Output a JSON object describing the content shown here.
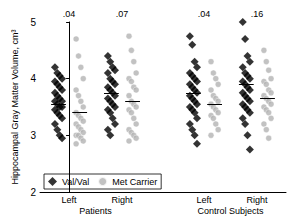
{
  "chart_data": {
    "type": "scatter",
    "ylabel": "Hippocampal Gray Matter Volume, cm³",
    "ylim": [
      2,
      5
    ],
    "yticks": [
      2,
      3,
      4,
      5
    ],
    "categories": [
      "Left",
      "Right",
      "Left",
      "Right"
    ],
    "groups": [
      {
        "name": "Patients",
        "categories": [
          0,
          1
        ]
      },
      {
        "name": "Control Subjects",
        "categories": [
          2,
          3
        ]
      }
    ],
    "annotations": [
      {
        "value": 0.04,
        "label": ".04"
      },
      {
        "value": 0.07,
        "label": ".07"
      },
      {
        "value": 0.04,
        "label": ".04"
      },
      {
        "value": 0.16,
        "label": ".16"
      }
    ],
    "legend": "lower left",
    "series": [
      {
        "name": "Val/Val",
        "color": "#000000",
        "marker": "diamond",
        "values": [
          [
            4.2,
            4.1,
            4.05,
            4.0,
            3.95,
            3.9,
            3.85,
            3.8,
            3.75,
            3.7,
            3.65,
            3.6,
            3.6,
            3.55,
            3.5,
            3.5,
            3.45,
            3.4,
            3.35,
            3.3,
            3.2,
            3.1,
            3.0,
            2.95
          ],
          [
            4.4,
            4.3,
            4.2,
            4.15,
            4.1,
            4.0,
            3.95,
            3.9,
            3.85,
            3.8,
            3.75,
            3.7,
            3.65,
            3.6,
            3.55,
            3.5,
            3.45,
            3.4,
            3.3,
            3.2,
            3.1,
            3.0
          ],
          [
            4.75,
            4.6,
            4.3,
            4.2,
            4.1,
            4.05,
            4.0,
            3.95,
            3.9,
            3.85,
            3.8,
            3.75,
            3.7,
            3.65,
            3.6,
            3.55,
            3.5,
            3.45,
            3.4,
            3.3,
            3.2,
            3.1,
            3.0,
            2.85
          ],
          [
            5.0,
            4.7,
            4.4,
            4.3,
            4.2,
            4.1,
            4.05,
            4.0,
            3.95,
            3.9,
            3.85,
            3.8,
            3.75,
            3.7,
            3.65,
            3.6,
            3.55,
            3.5,
            3.45,
            3.4,
            3.3,
            3.2,
            3.0,
            2.75
          ]
        ],
        "means": [
          3.55,
          3.75,
          3.75,
          3.9
        ]
      },
      {
        "name": "Met Carrier",
        "color": "#b3b3b3",
        "marker": "circle",
        "values": [
          [
            4.7,
            4.4,
            4.2,
            4.0,
            3.8,
            3.7,
            3.6,
            3.5,
            3.4,
            3.35,
            3.3,
            3.25,
            3.2,
            3.15,
            3.1,
            3.05,
            3.0,
            3.0,
            2.95,
            2.9,
            2.85
          ],
          [
            4.75,
            4.5,
            4.3,
            4.1,
            4.0,
            3.95,
            3.85,
            3.8,
            3.7,
            3.6,
            3.55,
            3.5,
            3.45,
            3.4,
            3.3,
            3.2,
            3.1,
            3.05,
            3.0,
            2.95,
            2.9
          ],
          [
            4.3,
            4.1,
            4.0,
            3.9,
            3.8,
            3.7,
            3.65,
            3.6,
            3.55,
            3.5,
            3.45,
            3.4,
            3.35,
            3.3,
            3.2,
            3.1,
            3.0
          ],
          [
            4.5,
            4.3,
            4.15,
            4.0,
            3.95,
            3.9,
            3.8,
            3.75,
            3.7,
            3.65,
            3.6,
            3.55,
            3.5,
            3.45,
            3.4,
            3.3,
            3.2,
            3.1,
            2.95
          ]
        ],
        "means": [
          3.4,
          3.6,
          3.55,
          3.65
        ]
      }
    ]
  }
}
